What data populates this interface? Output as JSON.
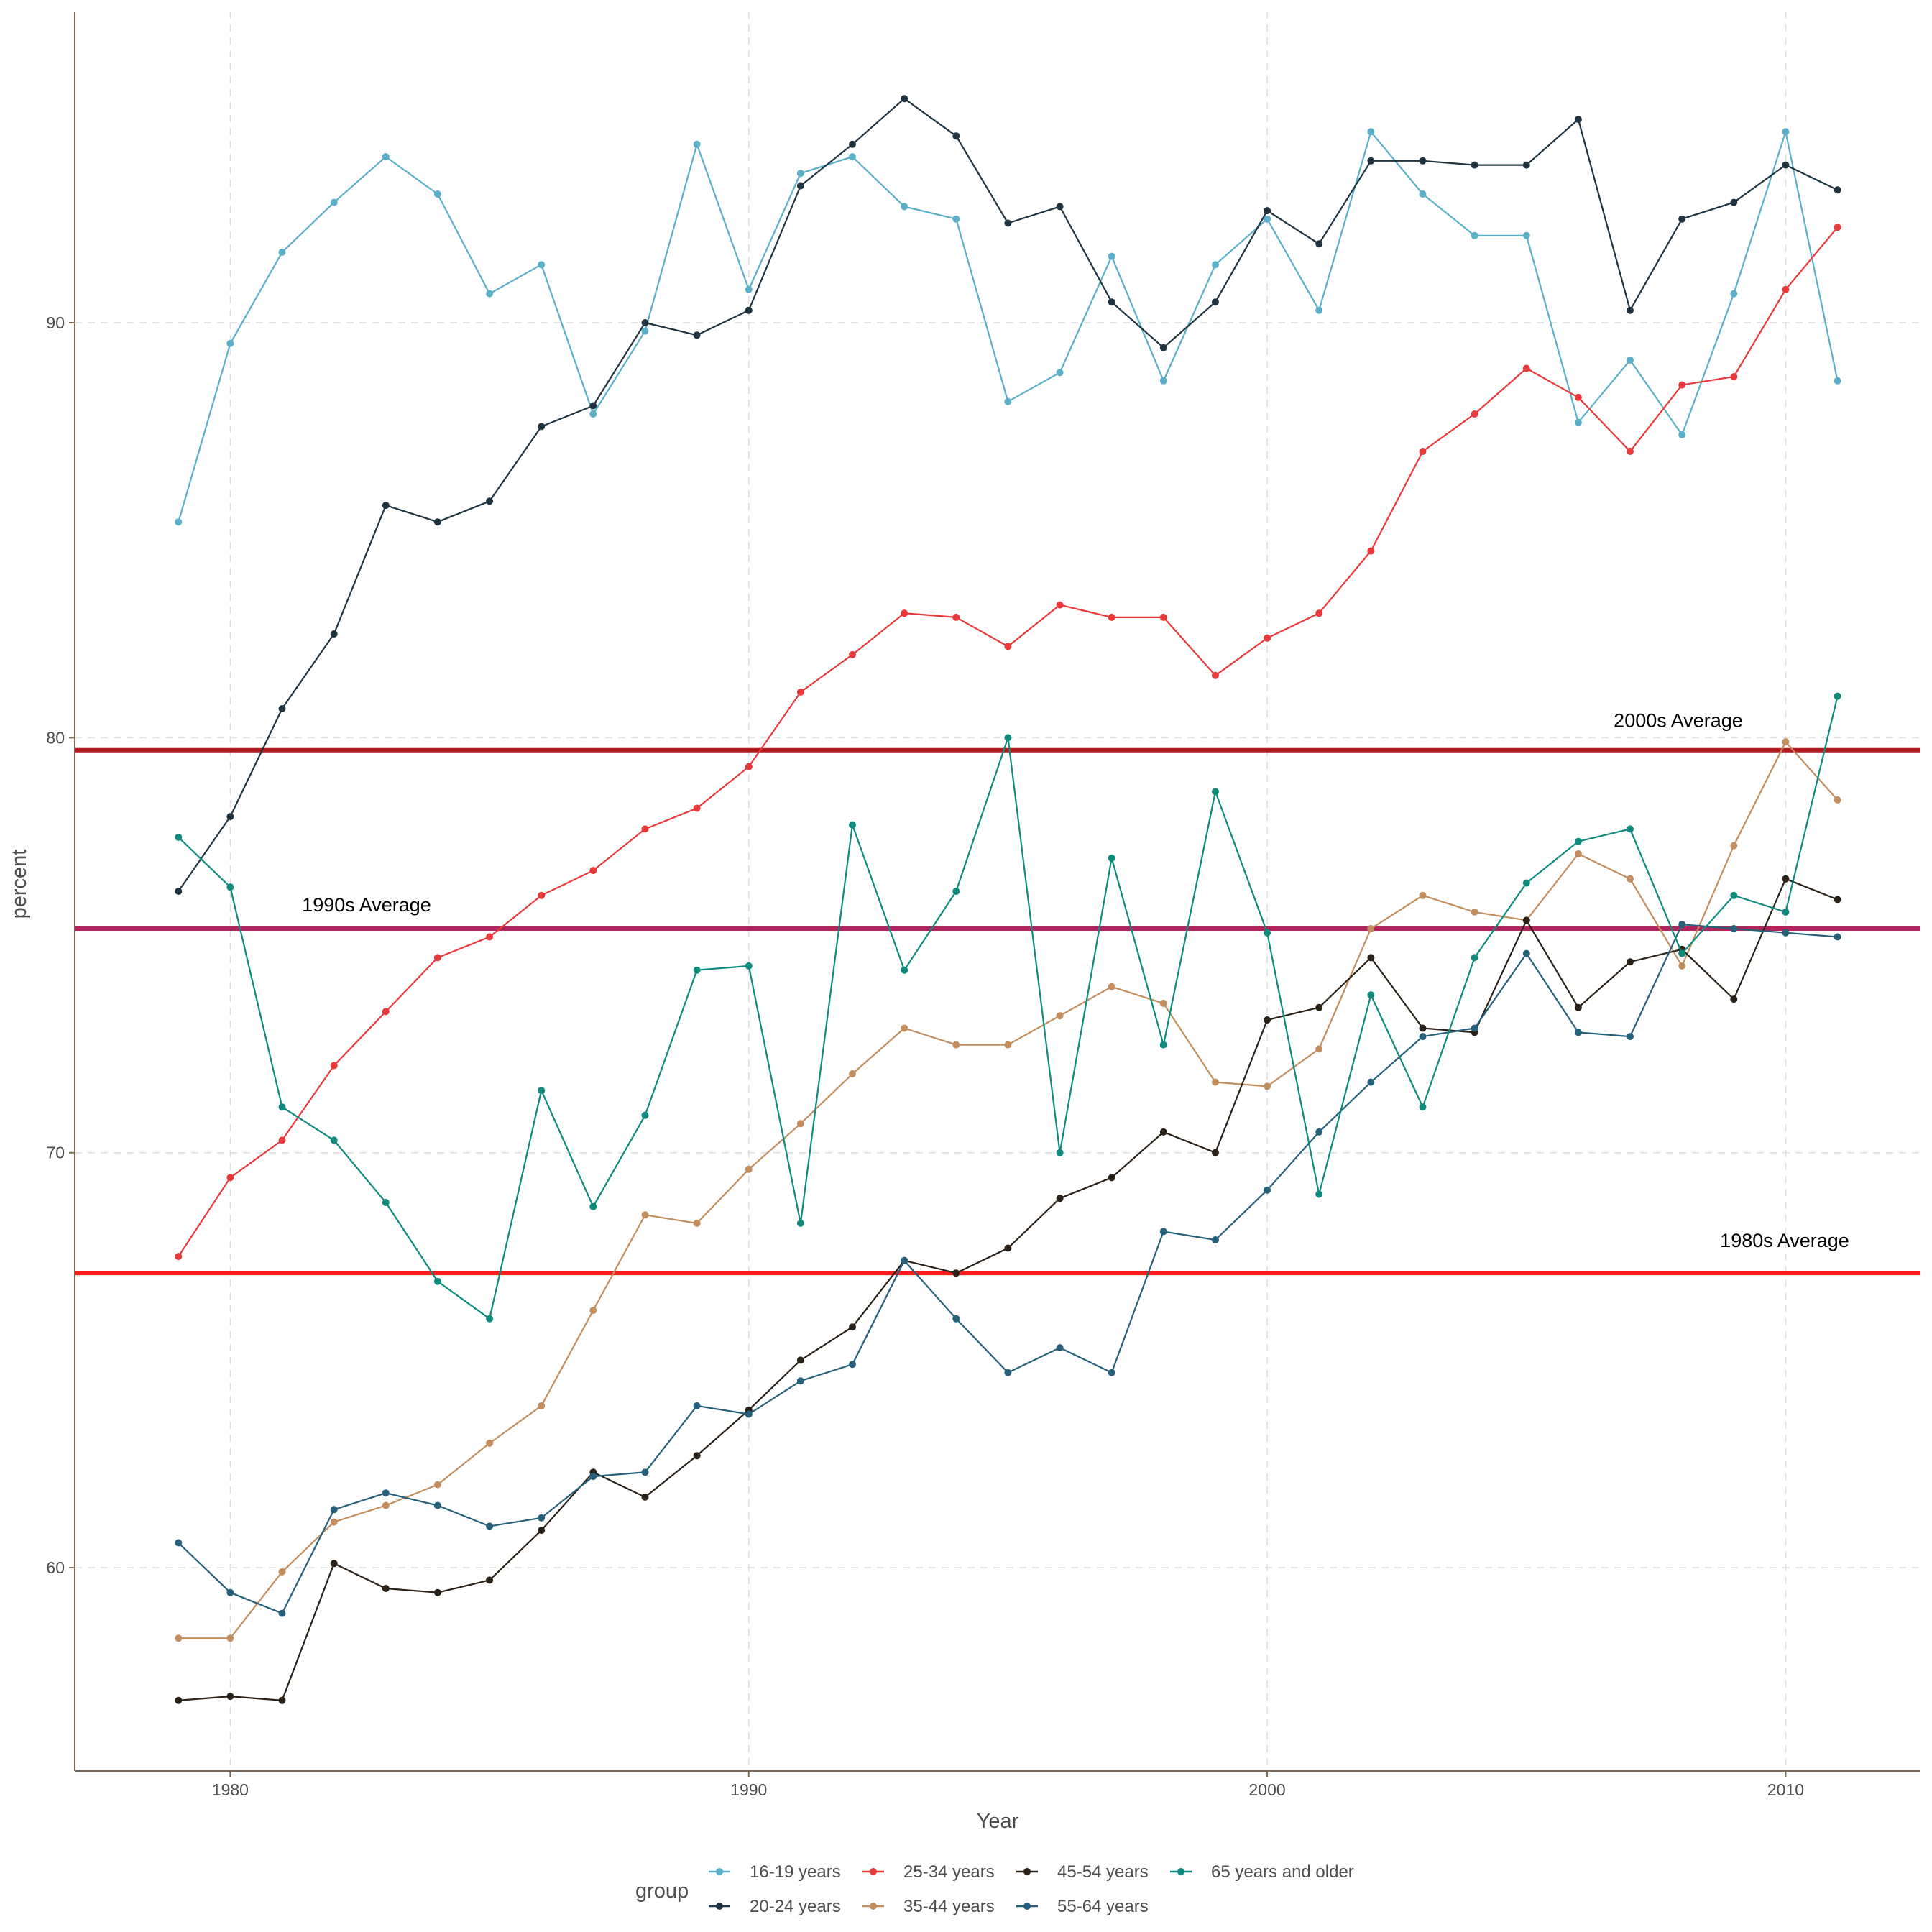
{
  "chart_data": {
    "type": "line",
    "xlabel": "Year",
    "ylabel": "percent",
    "xlim": [
      1977.0,
      2012.6
    ],
    "ylim": [
      55.1,
      97.5
    ],
    "xticks": [
      1980,
      1990,
      2000,
      2010
    ],
    "yticks": [
      60,
      70,
      80,
      90
    ],
    "grid": true,
    "legend_position": "bottom",
    "legend_title": "group",
    "x": [
      1979,
      1980,
      1981,
      1982,
      1983,
      1984,
      1985,
      1986,
      1987,
      1988,
      1989,
      1990,
      1991,
      1992,
      1993,
      1994,
      1995,
      1996,
      1997,
      1998,
      1999,
      2000,
      2001,
      2002,
      2003,
      2004,
      2005,
      2006,
      2007,
      2008,
      2009,
      2010,
      2011
    ],
    "series": [
      {
        "name": "16-19 years",
        "color": "#5bafc9",
        "values": [
          85.2,
          89.5,
          91.7,
          92.9,
          94.0,
          93.1,
          90.7,
          91.4,
          87.8,
          89.8,
          94.3,
          90.8,
          93.6,
          94.0,
          92.8,
          92.5,
          88.1,
          88.8,
          91.6,
          88.6,
          91.4,
          92.5,
          90.3,
          94.6,
          93.1,
          92.1,
          92.1,
          87.6,
          89.1,
          87.3,
          90.7,
          94.6,
          88.6
        ]
      },
      {
        "name": "20-24 years",
        "color": "#1f3440",
        "values": [
          76.3,
          78.1,
          80.7,
          82.5,
          85.6,
          85.2,
          85.7,
          87.5,
          88.0,
          90.0,
          89.7,
          90.3,
          93.3,
          94.3,
          95.4,
          94.5,
          92.4,
          92.8,
          90.5,
          89.4,
          90.5,
          92.7,
          91.9,
          93.9,
          93.9,
          93.8,
          93.8,
          94.9,
          90.3,
          92.5,
          92.9,
          93.8,
          93.2
        ]
      },
      {
        "name": "25-34 years",
        "color": "#e8393b",
        "values": [
          67.5,
          69.4,
          70.3,
          72.1,
          73.4,
          74.7,
          75.2,
          76.2,
          76.8,
          77.8,
          78.3,
          79.3,
          81.1,
          82.0,
          83.0,
          82.9,
          82.2,
          83.2,
          82.9,
          82.9,
          81.5,
          82.4,
          83.0,
          84.5,
          86.9,
          87.8,
          88.9,
          88.2,
          86.9,
          88.5,
          88.7,
          90.8,
          92.3
        ]
      },
      {
        "name": "35-44 years",
        "color": "#c38e5f",
        "values": [
          58.3,
          58.3,
          59.9,
          61.1,
          61.5,
          62.0,
          63.0,
          63.9,
          66.2,
          68.5,
          68.3,
          69.6,
          70.7,
          71.9,
          73.0,
          72.6,
          72.6,
          73.3,
          74.0,
          73.6,
          71.7,
          71.6,
          72.5,
          75.4,
          76.2,
          75.8,
          75.6,
          77.2,
          76.6,
          74.5,
          77.4,
          79.9,
          78.5
        ]
      },
      {
        "name": "45-54 years",
        "color": "#2a2118",
        "values": [
          56.8,
          56.9,
          56.8,
          60.1,
          59.5,
          59.4,
          59.7,
          60.9,
          62.3,
          61.7,
          62.7,
          63.8,
          65.0,
          65.8,
          67.4,
          67.1,
          67.7,
          68.9,
          69.4,
          70.5,
          70.0,
          73.2,
          73.5,
          74.7,
          73.0,
          72.9,
          75.6,
          73.5,
          74.6,
          74.9,
          73.7,
          76.6,
          76.1
        ]
      },
      {
        "name": "55-64 years",
        "color": "#27607a",
        "values": [
          60.6,
          59.4,
          58.9,
          61.4,
          61.8,
          61.5,
          61.0,
          61.2,
          62.2,
          62.3,
          63.9,
          63.7,
          64.5,
          64.9,
          67.4,
          66.0,
          64.7,
          65.3,
          64.7,
          68.1,
          67.9,
          69.1,
          70.5,
          71.7,
          72.8,
          73.0,
          74.8,
          72.9,
          72.8,
          75.5,
          75.4,
          75.3,
          75.2
        ]
      },
      {
        "name": "65 years and older",
        "color": "#0f8a7d",
        "values": [
          77.6,
          76.4,
          71.1,
          70.3,
          68.8,
          66.9,
          66.0,
          71.5,
          68.7,
          70.9,
          74.4,
          74.5,
          68.3,
          77.9,
          74.4,
          76.3,
          80.0,
          70.0,
          77.1,
          72.6,
          78.7,
          75.3,
          69.0,
          73.8,
          71.1,
          74.7,
          76.5,
          77.5,
          77.8,
          74.8,
          76.2,
          75.8,
          81.0
        ]
      }
    ],
    "reference_lines": [
      {
        "label": "2000s Average",
        "y": 79.7,
        "color": "#b31c1c"
      },
      {
        "label": "1990s Average",
        "y": 75.4,
        "color": "#b3245f"
      },
      {
        "label": "1980s Average",
        "y": 67.1,
        "color": "#ff1a1a"
      }
    ]
  }
}
